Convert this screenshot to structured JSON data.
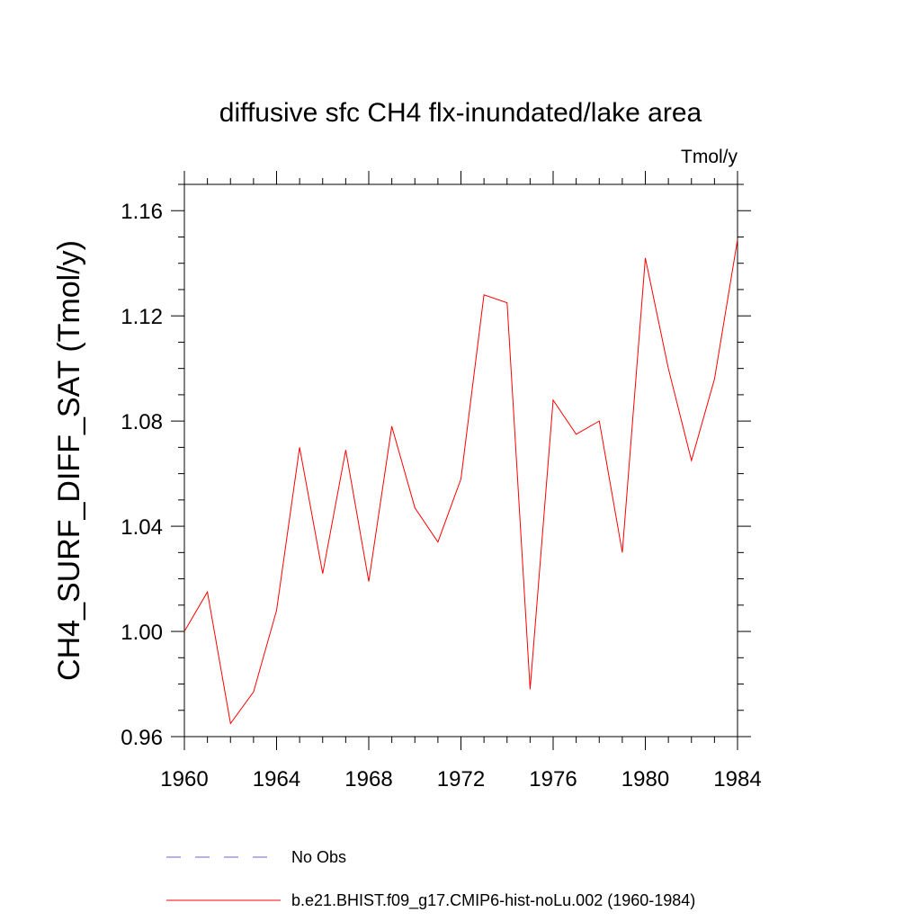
{
  "chart_data": {
    "type": "line",
    "title": "diffusive sfc CH4 flx-inundated/lake area",
    "units_label": "Tmol/y",
    "ylabel": "CH4_SURF_DIFF_SAT  (Tmol/y)",
    "xlabel": "",
    "xlim": [
      1960,
      1984
    ],
    "ylim": [
      0.96,
      1.17
    ],
    "x_ticks": [
      1960,
      1964,
      1968,
      1972,
      1976,
      1980,
      1984
    ],
    "y_ticks": [
      0.96,
      1.0,
      1.04,
      1.08,
      1.12,
      1.16
    ],
    "y_tick_labels": [
      "0.96",
      "1.00",
      "1.04",
      "1.08",
      "1.12",
      "1.16"
    ],
    "grid": false,
    "legend_position": "bottom",
    "legend": [
      {
        "label": "No Obs",
        "color": "#6666cc",
        "style": "dashed"
      },
      {
        "label": "b.e21.BHIST.f09_g17.CMIP6-hist-noLu.002 (1960-1984)",
        "color": "#ff0000",
        "style": "solid"
      }
    ],
    "series": [
      {
        "name": "b.e21.BHIST.f09_g17.CMIP6-hist-noLu.002 (1960-1984)",
        "color": "#ff0000",
        "x": [
          1960,
          1961,
          1962,
          1963,
          1964,
          1965,
          1966,
          1967,
          1968,
          1969,
          1970,
          1971,
          1972,
          1973,
          1974,
          1975,
          1976,
          1977,
          1978,
          1979,
          1980,
          1981,
          1982,
          1983,
          1984
        ],
        "values": [
          1.0,
          1.015,
          0.965,
          0.977,
          1.008,
          1.07,
          1.022,
          1.069,
          1.019,
          1.078,
          1.047,
          1.034,
          1.058,
          1.128,
          1.125,
          0.978,
          1.088,
          1.075,
          1.08,
          1.03,
          1.142,
          1.1,
          1.065,
          1.096,
          1.149
        ]
      }
    ]
  }
}
